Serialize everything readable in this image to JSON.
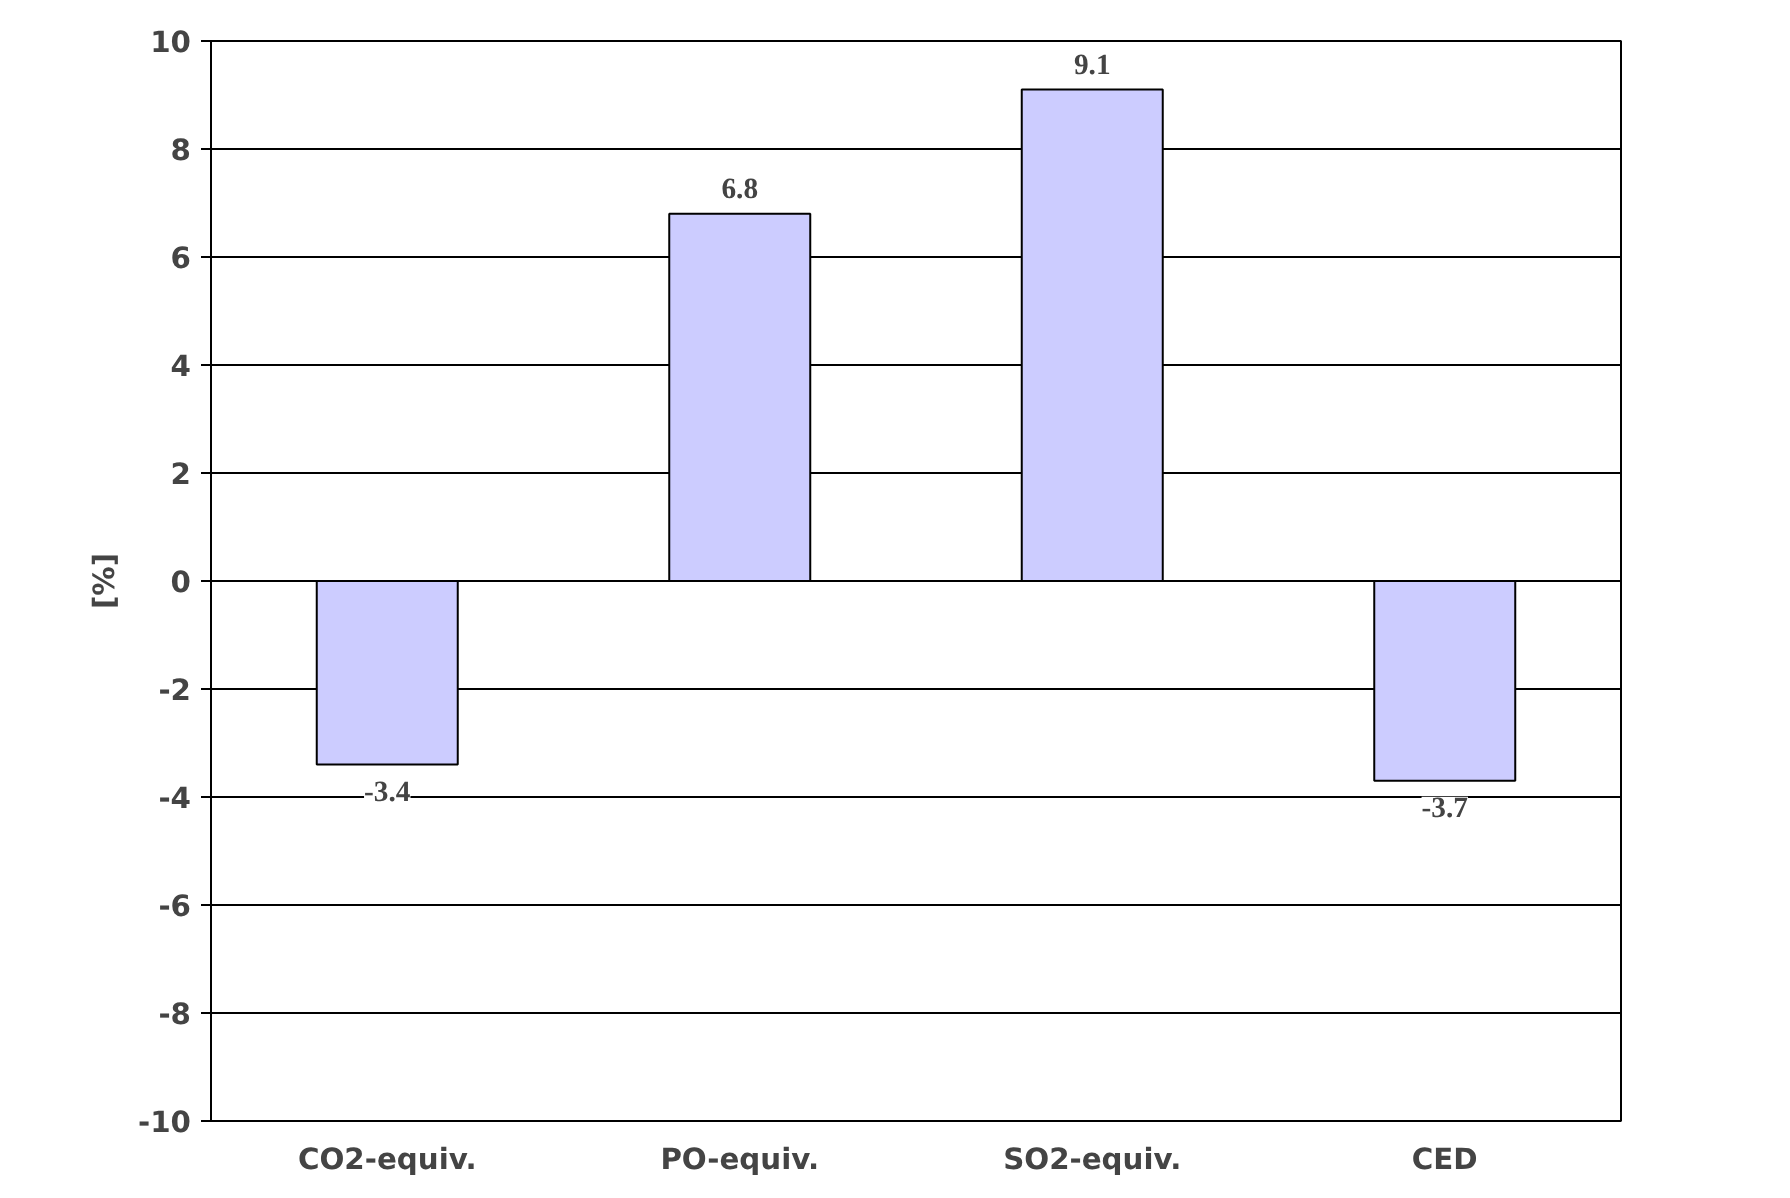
{
  "chart_data": {
    "type": "bar",
    "ylabel": "[%]",
    "categories": [
      "CO2-equiv.",
      "PO-equiv.",
      "SO2-equiv.",
      "CED"
    ],
    "values": [
      -3.4,
      6.8,
      9.1,
      -3.7
    ],
    "color": "#ccccff",
    "ylim": [
      -10,
      10
    ],
    "yticks": [
      -10,
      -8,
      -6,
      -4,
      -2,
      0,
      2,
      4,
      6,
      8,
      10
    ],
    "grid": "y",
    "data_labels": true
  }
}
